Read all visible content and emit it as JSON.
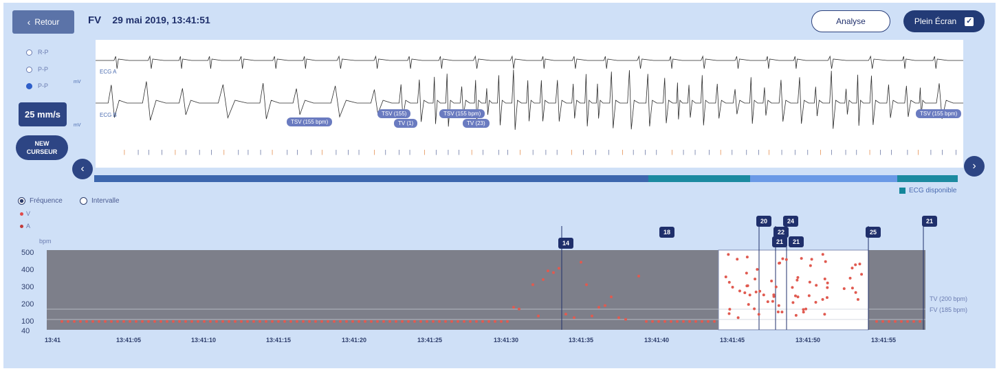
{
  "header": {
    "back_label": "Retour",
    "rhythm": "FV",
    "datetime": "29 mai 2019, 13:41:51",
    "analyse_label": "Analyse",
    "fullscreen_label": "Plein Écran",
    "fullscreen_checked": "✓"
  },
  "leads": {
    "options": [
      "R-P",
      "P-P",
      "P-P"
    ],
    "selected_index": 2
  },
  "speed_label": "25 mm/s",
  "cursor_button": {
    "line1": "NEW",
    "line2": "CURSEUR"
  },
  "ecg": {
    "channel_1_label": "ECG A",
    "channel_2_label": "ECG B",
    "scale_label": "mV",
    "annotations": [
      "TSV (155 bpm)",
      "TSV (155)",
      "TV (1)",
      "TSV (155 bpm)",
      "TV (23)",
      "TSV (155 bpm)"
    ]
  },
  "bands": {
    "colors": [
      "#3c66ad",
      "#1b8aa0",
      "#6a99e6",
      "#3c66ad",
      "#1b8aa0"
    ]
  },
  "ecg_legend": "ECG disponible",
  "frequency_toggle": {
    "frequency_label": "Fréquence",
    "interval_label": "Intervalle",
    "selected": "frequency"
  },
  "series_legend": [
    {
      "name": "V",
      "color": "#e04a4a"
    },
    {
      "name": "A",
      "color": "#c03a3a"
    }
  ],
  "chart_data": {
    "type": "scatter",
    "y_unit": "bpm",
    "y_ticks": [
      "500",
      "400",
      "300",
      "200",
      "100",
      "40"
    ],
    "ylim": [
      40,
      500
    ],
    "x_ticks": [
      "13:41",
      "13:41:05",
      "13:41:10",
      "13:41:15",
      "13:41:20",
      "13:41:25",
      "13:41:30",
      "13:41:35",
      "13:41:40",
      "13:41:45",
      "13:41:50",
      "13:41:55"
    ],
    "thresholds": [
      {
        "label": "TV (200 bpm)",
        "value": 150
      },
      {
        "label": "FV (185 bpm)",
        "value": 80
      }
    ],
    "episode_badges": [
      "18",
      "14",
      "20",
      "24",
      "22",
      "21",
      "21",
      "25",
      "21"
    ],
    "colors": {
      "background": "#7d7f8a",
      "points": "#e05a50"
    }
  }
}
